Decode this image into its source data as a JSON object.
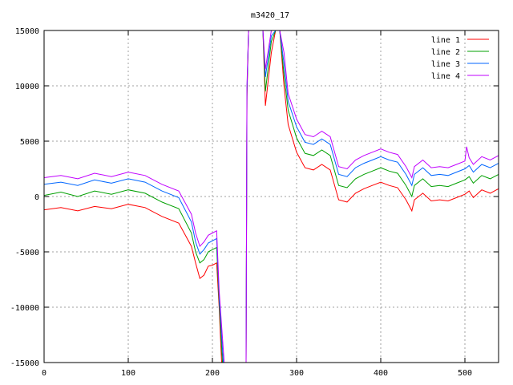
{
  "chart_data": {
    "type": "line",
    "title": "m3420_17",
    "xlabel": "",
    "ylabel": "",
    "xlim": [
      0,
      540
    ],
    "ylim": [
      -15000,
      15000
    ],
    "x_ticks": [
      0,
      100,
      200,
      300,
      400,
      500
    ],
    "y_ticks": [
      -15000,
      -10000,
      -5000,
      0,
      5000,
      10000,
      15000
    ],
    "grid": true,
    "legend_position": "top-right",
    "series": [
      {
        "name": "line 1",
        "color": "#ff0000",
        "points": [
          [
            0,
            -1200
          ],
          [
            20,
            -1000
          ],
          [
            40,
            -1300
          ],
          [
            60,
            -900
          ],
          [
            80,
            -1100
          ],
          [
            100,
            -700
          ],
          [
            120,
            -1000
          ],
          [
            140,
            -1800
          ],
          [
            160,
            -2400
          ],
          [
            175,
            -4500
          ],
          [
            180,
            -6000
          ],
          [
            185,
            -7400
          ],
          [
            190,
            -7100
          ],
          [
            195,
            -6300
          ],
          [
            200,
            -6200
          ],
          [
            205,
            -6000
          ],
          [
            208,
            -10000
          ],
          [
            211,
            -15000
          ],
          [
            240,
            -15000
          ],
          [
            241,
            9000
          ],
          [
            243,
            15000
          ],
          [
            260,
            15000
          ],
          [
            263,
            8200
          ],
          [
            270,
            13000
          ],
          [
            275,
            15000
          ],
          [
            280,
            15000
          ],
          [
            285,
            10000
          ],
          [
            290,
            6500
          ],
          [
            300,
            4000
          ],
          [
            310,
            2600
          ],
          [
            320,
            2400
          ],
          [
            330,
            2900
          ],
          [
            340,
            2400
          ],
          [
            350,
            -300
          ],
          [
            360,
            -500
          ],
          [
            370,
            300
          ],
          [
            380,
            700
          ],
          [
            390,
            1000
          ],
          [
            400,
            1300
          ],
          [
            410,
            1000
          ],
          [
            420,
            800
          ],
          [
            430,
            -300
          ],
          [
            437,
            -1300
          ],
          [
            440,
            -300
          ],
          [
            450,
            300
          ],
          [
            460,
            -400
          ],
          [
            470,
            -300
          ],
          [
            480,
            -400
          ],
          [
            490,
            -100
          ],
          [
            500,
            200
          ],
          [
            505,
            500
          ],
          [
            510,
            -100
          ],
          [
            520,
            600
          ],
          [
            530,
            300
          ],
          [
            540,
            700
          ]
        ]
      },
      {
        "name": "line 2",
        "color": "#00a000",
        "points": [
          [
            0,
            100
          ],
          [
            20,
            400
          ],
          [
            40,
            0
          ],
          [
            60,
            500
          ],
          [
            80,
            200
          ],
          [
            100,
            600
          ],
          [
            120,
            300
          ],
          [
            140,
            -500
          ],
          [
            160,
            -1100
          ],
          [
            175,
            -3300
          ],
          [
            180,
            -5000
          ],
          [
            185,
            -6000
          ],
          [
            190,
            -5700
          ],
          [
            195,
            -5000
          ],
          [
            200,
            -4800
          ],
          [
            205,
            -4600
          ],
          [
            208,
            -9500
          ],
          [
            212,
            -15000
          ],
          [
            240,
            -15000
          ],
          [
            241,
            9300
          ],
          [
            243,
            15000
          ],
          [
            260,
            15000
          ],
          [
            263,
            9500
          ],
          [
            270,
            14000
          ],
          [
            275,
            15000
          ],
          [
            280,
            15000
          ],
          [
            285,
            11000
          ],
          [
            290,
            7800
          ],
          [
            300,
            5300
          ],
          [
            310,
            3900
          ],
          [
            320,
            3700
          ],
          [
            330,
            4200
          ],
          [
            340,
            3700
          ],
          [
            350,
            1000
          ],
          [
            360,
            800
          ],
          [
            370,
            1600
          ],
          [
            380,
            2000
          ],
          [
            390,
            2300
          ],
          [
            400,
            2600
          ],
          [
            410,
            2300
          ],
          [
            420,
            2100
          ],
          [
            430,
            1000
          ],
          [
            437,
            0
          ],
          [
            440,
            1000
          ],
          [
            450,
            1600
          ],
          [
            460,
            900
          ],
          [
            470,
            1000
          ],
          [
            480,
            900
          ],
          [
            490,
            1200
          ],
          [
            500,
            1500
          ],
          [
            505,
            1800
          ],
          [
            510,
            1200
          ],
          [
            520,
            1900
          ],
          [
            530,
            1600
          ],
          [
            540,
            2000
          ]
        ]
      },
      {
        "name": "line 3",
        "color": "#0066ff",
        "points": [
          [
            0,
            1100
          ],
          [
            20,
            1300
          ],
          [
            40,
            1000
          ],
          [
            60,
            1500
          ],
          [
            80,
            1200
          ],
          [
            100,
            1600
          ],
          [
            120,
            1300
          ],
          [
            140,
            500
          ],
          [
            160,
            -100
          ],
          [
            175,
            -2300
          ],
          [
            180,
            -4100
          ],
          [
            185,
            -5200
          ],
          [
            190,
            -4800
          ],
          [
            195,
            -4200
          ],
          [
            200,
            -4000
          ],
          [
            205,
            -3800
          ],
          [
            208,
            -9000
          ],
          [
            213,
            -15000
          ],
          [
            240,
            -15000
          ],
          [
            241,
            9600
          ],
          [
            243,
            15000
          ],
          [
            260,
            15000
          ],
          [
            263,
            10800
          ],
          [
            270,
            14500
          ],
          [
            275,
            15000
          ],
          [
            280,
            15000
          ],
          [
            285,
            12000
          ],
          [
            290,
            8600
          ],
          [
            300,
            6300
          ],
          [
            310,
            4900
          ],
          [
            320,
            4700
          ],
          [
            330,
            5200
          ],
          [
            340,
            4700
          ],
          [
            350,
            2000
          ],
          [
            360,
            1800
          ],
          [
            370,
            2600
          ],
          [
            380,
            3000
          ],
          [
            390,
            3300
          ],
          [
            400,
            3600
          ],
          [
            410,
            3300
          ],
          [
            420,
            3100
          ],
          [
            430,
            2000
          ],
          [
            437,
            1000
          ],
          [
            440,
            2000
          ],
          [
            450,
            2600
          ],
          [
            460,
            1900
          ],
          [
            470,
            2000
          ],
          [
            480,
            1900
          ],
          [
            490,
            2200
          ],
          [
            500,
            2500
          ],
          [
            505,
            2800
          ],
          [
            510,
            2200
          ],
          [
            520,
            2900
          ],
          [
            530,
            2600
          ],
          [
            540,
            3000
          ]
        ]
      },
      {
        "name": "line 4",
        "color": "#c000ff",
        "points": [
          [
            0,
            1700
          ],
          [
            20,
            1900
          ],
          [
            40,
            1600
          ],
          [
            60,
            2100
          ],
          [
            80,
            1800
          ],
          [
            100,
            2200
          ],
          [
            120,
            1900
          ],
          [
            140,
            1100
          ],
          [
            160,
            500
          ],
          [
            175,
            -1600
          ],
          [
            180,
            -3300
          ],
          [
            185,
            -4500
          ],
          [
            190,
            -4100
          ],
          [
            195,
            -3500
          ],
          [
            200,
            -3300
          ],
          [
            205,
            -3100
          ],
          [
            208,
            -8500
          ],
          [
            214,
            -15000
          ],
          [
            240,
            -15000
          ],
          [
            241,
            10000
          ],
          [
            243,
            15000
          ],
          [
            260,
            15000
          ],
          [
            263,
            11500
          ],
          [
            270,
            15000
          ],
          [
            275,
            15000
          ],
          [
            280,
            15000
          ],
          [
            285,
            13000
          ],
          [
            290,
            9300
          ],
          [
            300,
            7000
          ],
          [
            310,
            5600
          ],
          [
            320,
            5400
          ],
          [
            330,
            5900
          ],
          [
            340,
            5400
          ],
          [
            350,
            2700
          ],
          [
            360,
            2500
          ],
          [
            370,
            3300
          ],
          [
            380,
            3700
          ],
          [
            390,
            4000
          ],
          [
            400,
            4300
          ],
          [
            410,
            4000
          ],
          [
            420,
            3800
          ],
          [
            430,
            2700
          ],
          [
            437,
            1700
          ],
          [
            440,
            2700
          ],
          [
            450,
            3300
          ],
          [
            460,
            2600
          ],
          [
            470,
            2700
          ],
          [
            480,
            2600
          ],
          [
            490,
            2900
          ],
          [
            500,
            3200
          ],
          [
            502,
            4500
          ],
          [
            505,
            3500
          ],
          [
            510,
            2900
          ],
          [
            520,
            3600
          ],
          [
            530,
            3300
          ],
          [
            540,
            3700
          ]
        ]
      }
    ]
  }
}
